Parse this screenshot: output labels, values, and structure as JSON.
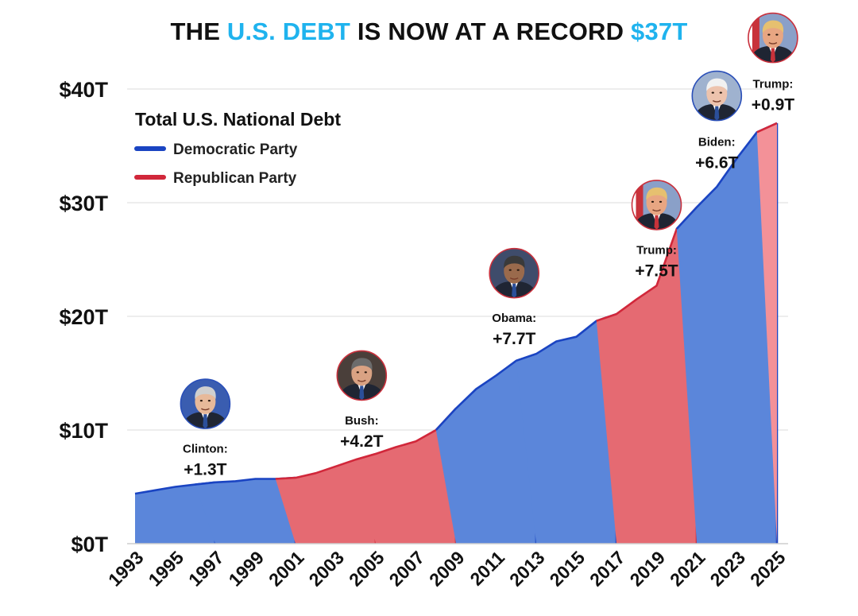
{
  "title": {
    "part1": "THE ",
    "part2": "U.S. DEBT",
    "part3": " IS NOW AT A RECORD ",
    "part4": "$37T"
  },
  "colors": {
    "title_highlight": "#1fb3ee",
    "democratic_fill": "#5b86da",
    "democratic_line": "#1a44c2",
    "republican_fill": "#e56a72",
    "republican_line": "#d1273a",
    "republican_fill_light": "#f39198",
    "grid": "#e2e2e2"
  },
  "chart_data": {
    "type": "area",
    "title": "THE U.S. DEBT IS NOW AT A RECORD $37T",
    "legend_title": "Total U.S. National Debt",
    "legend_position": "top-left",
    "grid": true,
    "x": [
      1993,
      1994,
      1995,
      1996,
      1997,
      1998,
      1999,
      2000,
      2001,
      2002,
      2003,
      2004,
      2005,
      2006,
      2007,
      2008,
      2009,
      2010,
      2011,
      2012,
      2013,
      2014,
      2015,
      2016,
      2017,
      2018,
      2019,
      2020,
      2021,
      2022,
      2023,
      2024,
      2025
    ],
    "y": [
      4.4,
      4.7,
      5.0,
      5.2,
      5.4,
      5.5,
      5.7,
      5.7,
      5.8,
      6.2,
      6.8,
      7.4,
      7.9,
      8.5,
      9.0,
      10.0,
      11.9,
      13.6,
      14.8,
      16.1,
      16.7,
      17.8,
      18.2,
      19.6,
      20.2,
      21.5,
      22.7,
      27.7,
      29.6,
      31.4,
      33.9,
      36.2,
      37.0
    ],
    "x_ticks": [
      "1993",
      "1995",
      "1997",
      "1999",
      "2001",
      "2003",
      "2005",
      "2007",
      "2009",
      "2011",
      "2013",
      "2015",
      "2017",
      "2019",
      "2021",
      "2023",
      "2025"
    ],
    "y_ticks": [
      "$0T",
      "$10T",
      "$20T",
      "$30T",
      "$40T"
    ],
    "y_tick_values": [
      0,
      10,
      20,
      30,
      40
    ],
    "xlim": [
      1993,
      2025
    ],
    "ylim": [
      0,
      40
    ],
    "series": [
      {
        "name": "Democratic Party",
        "party": "dem"
      },
      {
        "name": "Republican Party",
        "party": "rep"
      }
    ],
    "segments": [
      {
        "party": "dem",
        "start": 1993,
        "end": 1997
      },
      {
        "party": "dem",
        "start": 1996,
        "end": 2001
      },
      {
        "party": "rep",
        "start": 2000,
        "end": 2005
      },
      {
        "party": "rep",
        "start": 2004,
        "end": 2009
      },
      {
        "party": "dem",
        "start": 2008,
        "end": 2013
      },
      {
        "party": "dem",
        "start": 2012,
        "end": 2017
      },
      {
        "party": "rep",
        "start": 2016,
        "end": 2021
      },
      {
        "party": "dem",
        "start": 2020,
        "end": 2025
      },
      {
        "party": "rep",
        "start": 2024,
        "end": 2025,
        "light": true
      }
    ],
    "annotations": [
      {
        "name": "Clinton:",
        "value": "+1.3T",
        "x": 1996.5,
        "y": 8.0,
        "portrait_y": 12.3,
        "portrait": "clinton"
      },
      {
        "name": "Bush:",
        "value": "+4.2T",
        "x": 2004.3,
        "y": 10.5,
        "portrait_y": 14.8,
        "portrait": "bush"
      },
      {
        "name": "Obama:",
        "value": "+7.7T",
        "x": 2011.9,
        "y": 19.5,
        "portrait_y": 23.8,
        "portrait": "obama"
      },
      {
        "name": "Trump:",
        "value": "+7.5T",
        "x": 2019.0,
        "y": 25.5,
        "portrait_y": 29.8,
        "portrait": "trump"
      },
      {
        "name": "Biden:",
        "value": "+6.6T",
        "x": 2022.0,
        "y": 35.0,
        "portrait_y": 39.4,
        "portrait": "biden"
      },
      {
        "name": "Trump:",
        "value": "+0.9T",
        "x": 2024.8,
        "y": 40.1,
        "portrait_y": 44.5,
        "portrait": "trump"
      }
    ]
  }
}
